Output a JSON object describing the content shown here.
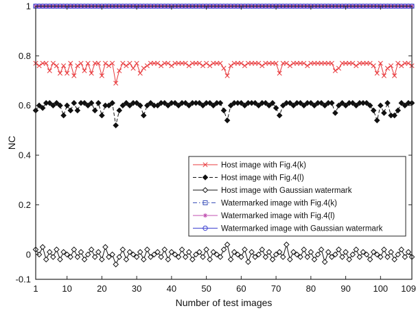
{
  "chart_data": {
    "type": "line",
    "title": "",
    "xlabel": "Number of test images",
    "ylabel": "NC",
    "xlim": [
      1,
      109
    ],
    "ylim": [
      -0.1,
      1
    ],
    "xticks": [
      "1",
      "10",
      "20",
      "30",
      "40",
      "50",
      "60",
      "70",
      "80",
      "90",
      "100",
      "109"
    ],
    "yticks": [
      "-0.1",
      "0",
      "0.2",
      "0.4",
      "0.6",
      "0.8",
      "1"
    ],
    "grid": false,
    "legend_position": "lower-right",
    "x": [
      1,
      2,
      3,
      4,
      5,
      6,
      7,
      8,
      9,
      10,
      11,
      12,
      13,
      14,
      15,
      16,
      17,
      18,
      19,
      20,
      21,
      22,
      23,
      24,
      25,
      26,
      27,
      28,
      29,
      30,
      31,
      32,
      33,
      34,
      35,
      36,
      37,
      38,
      39,
      40,
      41,
      42,
      43,
      44,
      45,
      46,
      47,
      48,
      49,
      50,
      51,
      52,
      53,
      54,
      55,
      56,
      57,
      58,
      59,
      60,
      61,
      62,
      63,
      64,
      65,
      66,
      67,
      68,
      69,
      70,
      71,
      72,
      73,
      74,
      75,
      76,
      77,
      78,
      79,
      80,
      81,
      82,
      83,
      84,
      85,
      86,
      87,
      88,
      89,
      90,
      91,
      92,
      93,
      94,
      95,
      96,
      97,
      98,
      99,
      100,
      101,
      102,
      103,
      104,
      105,
      106,
      107,
      108,
      109
    ],
    "series": [
      {
        "name": "Host image with Fig.4(k)",
        "color": "#e8393c",
        "marker": "x",
        "linestyle": "solid",
        "values": [
          0.77,
          0.76,
          0.77,
          0.77,
          0.74,
          0.77,
          0.76,
          0.73,
          0.76,
          0.73,
          0.77,
          0.72,
          0.76,
          0.77,
          0.74,
          0.77,
          0.73,
          0.77,
          0.77,
          0.72,
          0.77,
          0.76,
          0.77,
          0.69,
          0.74,
          0.77,
          0.76,
          0.77,
          0.75,
          0.77,
          0.73,
          0.75,
          0.76,
          0.77,
          0.77,
          0.77,
          0.76,
          0.77,
          0.77,
          0.76,
          0.77,
          0.77,
          0.77,
          0.77,
          0.76,
          0.77,
          0.77,
          0.77,
          0.76,
          0.77,
          0.76,
          0.77,
          0.77,
          0.77,
          0.75,
          0.72,
          0.76,
          0.77,
          0.77,
          0.77,
          0.76,
          0.77,
          0.77,
          0.77,
          0.77,
          0.76,
          0.77,
          0.77,
          0.77,
          0.77,
          0.73,
          0.77,
          0.77,
          0.76,
          0.77,
          0.77,
          0.77,
          0.77,
          0.76,
          0.77,
          0.77,
          0.77,
          0.77,
          0.77,
          0.77,
          0.77,
          0.74,
          0.75,
          0.77,
          0.77,
          0.77,
          0.77,
          0.76,
          0.77,
          0.77,
          0.77,
          0.77,
          0.76,
          0.73,
          0.77,
          0.72,
          0.75,
          0.76,
          0.72,
          0.77,
          0.76,
          0.77,
          0.77,
          0.76
        ]
      },
      {
        "name": "Host image with Fig.4(l)",
        "color": "#111111",
        "marker": "diamond-filled",
        "linestyle": "dashed",
        "values": [
          0.58,
          0.6,
          0.59,
          0.61,
          0.61,
          0.6,
          0.61,
          0.6,
          0.56,
          0.6,
          0.58,
          0.61,
          0.58,
          0.61,
          0.61,
          0.6,
          0.61,
          0.58,
          0.61,
          0.56,
          0.6,
          0.6,
          0.61,
          0.52,
          0.58,
          0.6,
          0.61,
          0.6,
          0.61,
          0.61,
          0.6,
          0.56,
          0.6,
          0.61,
          0.6,
          0.6,
          0.61,
          0.61,
          0.6,
          0.61,
          0.61,
          0.6,
          0.61,
          0.61,
          0.6,
          0.61,
          0.61,
          0.61,
          0.6,
          0.61,
          0.61,
          0.6,
          0.61,
          0.61,
          0.58,
          0.54,
          0.6,
          0.61,
          0.61,
          0.61,
          0.6,
          0.61,
          0.61,
          0.61,
          0.6,
          0.61,
          0.61,
          0.6,
          0.61,
          0.59,
          0.56,
          0.6,
          0.61,
          0.61,
          0.6,
          0.61,
          0.61,
          0.6,
          0.61,
          0.61,
          0.6,
          0.61,
          0.61,
          0.6,
          0.61,
          0.61,
          0.57,
          0.6,
          0.61,
          0.6,
          0.61,
          0.61,
          0.6,
          0.61,
          0.61,
          0.61,
          0.6,
          0.58,
          0.54,
          0.6,
          0.57,
          0.61,
          0.56,
          0.56,
          0.58,
          0.61,
          0.6,
          0.61,
          0.61
        ]
      },
      {
        "name": "Host image with Gaussian watermark",
        "color": "#111111",
        "marker": "diamond-open",
        "linestyle": "solid",
        "values": [
          0.02,
          0.0,
          0.03,
          -0.02,
          0.01,
          -0.01,
          0.02,
          -0.02,
          0.01,
          0.0,
          -0.01,
          0.02,
          -0.01,
          0.01,
          -0.02,
          0.0,
          0.02,
          -0.01,
          0.01,
          -0.02,
          0.03,
          -0.01,
          0.0,
          -0.04,
          -0.01,
          0.02,
          -0.02,
          0.01,
          0.0,
          -0.01,
          0.01,
          -0.02,
          0.02,
          -0.01,
          0.0,
          0.01,
          -0.01,
          0.02,
          -0.02,
          0.01,
          0.0,
          -0.01,
          0.02,
          -0.01,
          0.01,
          -0.02,
          0.0,
          0.01,
          -0.01,
          0.02,
          -0.02,
          0.01,
          0.0,
          -0.01,
          0.02,
          0.04,
          -0.02,
          0.01,
          0.0,
          -0.01,
          0.02,
          -0.03,
          0.01,
          -0.01,
          0.0,
          0.02,
          -0.01,
          0.01,
          -0.02,
          0.0,
          0.01,
          -0.01,
          0.04,
          -0.02,
          0.01,
          0.0,
          -0.01,
          0.02,
          -0.01,
          0.01,
          -0.02,
          0.0,
          0.02,
          -0.03,
          0.01,
          -0.01,
          0.0,
          0.02,
          -0.01,
          0.01,
          -0.02,
          0.0,
          0.02,
          -0.01,
          0.01,
          0.0,
          -0.02,
          0.01,
          0.0,
          -0.01,
          0.02,
          -0.01,
          0.01,
          -0.02,
          0.0,
          0.02,
          -0.01,
          0.01,
          -0.01
        ]
      },
      {
        "name": "Watermarked image with Fig.4(k)",
        "color": "#3a4fb8",
        "marker": "square-open",
        "linestyle": "dashdot",
        "values": [
          1,
          1,
          1,
          1,
          1,
          1,
          1,
          1,
          1,
          1,
          1,
          1,
          1,
          1,
          1,
          1,
          1,
          1,
          1,
          1,
          1,
          1,
          1,
          1,
          1,
          1,
          1,
          1,
          1,
          1,
          1,
          1,
          1,
          1,
          1,
          1,
          1,
          1,
          1,
          1,
          1,
          1,
          1,
          1,
          1,
          1,
          1,
          1,
          1,
          1,
          1,
          1,
          1,
          1,
          1,
          1,
          1,
          1,
          1,
          1,
          1,
          1,
          1,
          1,
          1,
          1,
          1,
          1,
          1,
          1,
          1,
          1,
          1,
          1,
          1,
          1,
          1,
          1,
          1,
          1,
          1,
          1,
          1,
          1,
          1,
          1,
          1,
          1,
          1,
          1,
          1,
          1,
          1,
          1,
          1,
          1,
          1,
          1,
          1,
          1,
          1,
          1,
          1,
          1,
          1,
          1,
          1,
          1,
          1
        ]
      },
      {
        "name": "Watermarked image with Fig.4(l)",
        "color": "#c04fb0",
        "marker": "star",
        "linestyle": "solid",
        "values": [
          1,
          1,
          1,
          1,
          1,
          1,
          1,
          1,
          1,
          1,
          1,
          1,
          1,
          1,
          1,
          1,
          1,
          1,
          1,
          1,
          1,
          1,
          1,
          1,
          1,
          1,
          1,
          1,
          1,
          1,
          1,
          1,
          1,
          1,
          1,
          1,
          1,
          1,
          1,
          1,
          1,
          1,
          1,
          1,
          1,
          1,
          1,
          1,
          1,
          1,
          1,
          1,
          1,
          1,
          1,
          1,
          1,
          1,
          1,
          1,
          1,
          1,
          1,
          1,
          1,
          1,
          1,
          1,
          1,
          1,
          1,
          1,
          1,
          1,
          1,
          1,
          1,
          1,
          1,
          1,
          1,
          1,
          1,
          1,
          1,
          1,
          1,
          1,
          1,
          1,
          1,
          1,
          1,
          1,
          1,
          1,
          1,
          1,
          1,
          1,
          1,
          1,
          1,
          1,
          1,
          1,
          1,
          1,
          1
        ]
      },
      {
        "name": "Watermarked image with Gaussian watermark",
        "color": "#3b3fd0",
        "marker": "circle-open",
        "linestyle": "solid",
        "values": [
          1,
          1,
          1,
          1,
          1,
          1,
          1,
          1,
          1,
          1,
          1,
          1,
          1,
          1,
          1,
          1,
          1,
          1,
          1,
          1,
          1,
          1,
          1,
          1,
          1,
          1,
          1,
          1,
          1,
          1,
          1,
          1,
          1,
          1,
          1,
          1,
          1,
          1,
          1,
          1,
          1,
          1,
          1,
          1,
          1,
          1,
          1,
          1,
          1,
          1,
          1,
          1,
          1,
          1,
          1,
          1,
          1,
          1,
          1,
          1,
          1,
          1,
          1,
          1,
          1,
          1,
          1,
          1,
          1,
          1,
          1,
          1,
          1,
          1,
          1,
          1,
          1,
          1,
          1,
          1,
          1,
          1,
          1,
          1,
          1,
          1,
          1,
          1,
          1,
          1,
          1,
          1,
          1,
          1,
          1,
          1,
          1,
          1,
          1,
          1,
          1,
          1,
          1,
          1,
          1,
          1,
          1,
          1,
          1
        ]
      }
    ]
  }
}
